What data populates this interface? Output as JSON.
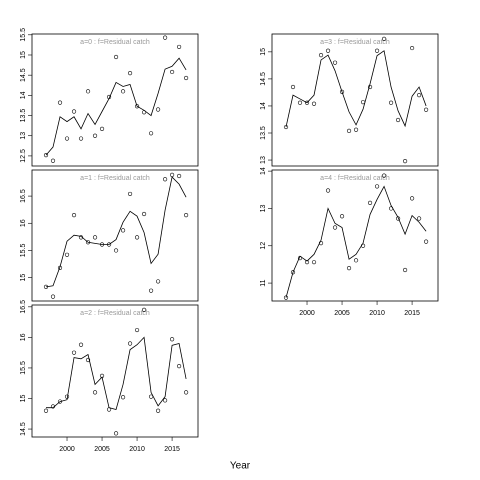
{
  "x_label": "Year",
  "chart_data": [
    {
      "type": "line",
      "title": "a=0  :  f=Residual catch",
      "x": [
        1997,
        1998,
        1999,
        2000,
        2001,
        2002,
        2003,
        2004,
        2005,
        2006,
        2007,
        2008,
        2009,
        2010,
        2011,
        2012,
        2013,
        2014,
        2015,
        2016,
        2017
      ],
      "series": [
        {
          "style": "points",
          "color": "#000000",
          "values": [
            12.52,
            12.38,
            13.82,
            12.93,
            13.6,
            12.93,
            14.1,
            13.0,
            13.17,
            13.96,
            14.95,
            14.1,
            14.55,
            13.73,
            13.58,
            13.06,
            13.65,
            15.43,
            14.58,
            15.2,
            14.43
          ]
        },
        {
          "style": "line",
          "color": "#000000",
          "values": [
            12.52,
            12.72,
            13.47,
            13.35,
            13.47,
            13.17,
            13.55,
            13.28,
            13.6,
            13.92,
            14.32,
            14.22,
            14.27,
            13.73,
            13.63,
            13.5,
            14.05,
            14.65,
            14.72,
            14.92,
            14.63
          ]
        }
      ],
      "xlim": [
        1995,
        2018.7
      ],
      "ylim": [
        12.25,
        15.52
      ],
      "yticks": [
        12.5,
        13.0,
        13.5,
        14.0,
        14.5,
        15.0,
        15.5
      ]
    },
    {
      "type": "line",
      "title": "a=1  :  f=Residual catch",
      "x": [
        1997,
        1998,
        1999,
        2000,
        2001,
        2002,
        2003,
        2004,
        2005,
        2006,
        2007,
        2008,
        2009,
        2010,
        2011,
        2012,
        2013,
        2014,
        2015,
        2016,
        2017
      ],
      "series": [
        {
          "style": "points",
          "color": "#000000",
          "values": [
            14.83,
            14.65,
            15.18,
            15.42,
            16.15,
            15.74,
            15.65,
            15.74,
            15.61,
            15.61,
            15.5,
            15.87,
            16.54,
            15.74,
            16.17,
            14.76,
            14.93,
            16.81,
            16.89,
            16.87,
            16.15
          ]
        },
        {
          "style": "line",
          "color": "#000000",
          "values": [
            14.83,
            14.85,
            15.2,
            15.67,
            15.78,
            15.76,
            15.65,
            15.63,
            15.61,
            15.61,
            15.7,
            16.02,
            16.22,
            16.13,
            15.83,
            15.26,
            15.43,
            16.24,
            16.85,
            16.72,
            16.48
          ]
        }
      ],
      "xlim": [
        1995,
        2018.7
      ],
      "ylim": [
        14.57,
        16.98
      ],
      "yticks": [
        15.0,
        15.5,
        16.0,
        16.5
      ]
    },
    {
      "type": "line",
      "title": "a=2  :  f=Residual catch",
      "x": [
        1997,
        1998,
        1999,
        2000,
        2001,
        2002,
        2003,
        2004,
        2005,
        2006,
        2007,
        2008,
        2009,
        2010,
        2011,
        2012,
        2013,
        2014,
        2015,
        2016,
        2017
      ],
      "series": [
        {
          "style": "points",
          "color": "#000000",
          "values": [
            14.8,
            14.87,
            14.95,
            15.03,
            15.75,
            15.88,
            15.63,
            15.1,
            15.37,
            14.82,
            14.43,
            15.02,
            15.9,
            16.12,
            16.45,
            15.03,
            14.8,
            14.97,
            15.97,
            15.53,
            15.1
          ]
        },
        {
          "style": "line",
          "color": "#000000",
          "values": [
            14.85,
            14.85,
            14.95,
            14.98,
            15.67,
            15.65,
            15.72,
            15.23,
            15.35,
            14.85,
            14.82,
            15.23,
            15.8,
            15.88,
            16.0,
            15.1,
            14.88,
            15.03,
            15.87,
            15.9,
            15.32
          ]
        }
      ],
      "xlim": [
        1995,
        2018.7
      ],
      "xticks": [
        2000,
        2005,
        2010,
        2015
      ],
      "ylim": [
        14.37,
        16.53
      ],
      "yticks": [
        14.5,
        15.0,
        15.5,
        16.0,
        16.5
      ]
    },
    {
      "type": "line",
      "title": "a=3  :  f=Residual catch",
      "x": [
        1997,
        1998,
        1999,
        2000,
        2001,
        2002,
        2003,
        2004,
        2005,
        2006,
        2007,
        2008,
        2009,
        2010,
        2011,
        2012,
        2013,
        2014,
        2015,
        2016,
        2017
      ],
      "series": [
        {
          "style": "points",
          "color": "#000000",
          "values": [
            13.61,
            14.35,
            14.06,
            14.06,
            14.04,
            14.94,
            15.02,
            14.8,
            14.26,
            13.54,
            13.56,
            14.07,
            14.35,
            15.02,
            15.24,
            14.06,
            13.74,
            12.98,
            15.07,
            14.2,
            13.93
          ]
        },
        {
          "style": "line",
          "color": "#000000",
          "values": [
            13.61,
            14.2,
            14.13,
            14.06,
            14.2,
            14.85,
            14.94,
            14.65,
            14.26,
            13.89,
            13.65,
            13.94,
            14.41,
            14.93,
            15.02,
            14.35,
            13.91,
            13.63,
            14.18,
            14.35,
            14.0
          ]
        }
      ],
      "xlim": [
        1995,
        2018.7
      ],
      "ylim": [
        12.89,
        15.33
      ],
      "yticks": [
        13.0,
        13.5,
        14.0,
        14.5,
        15.0
      ]
    },
    {
      "type": "line",
      "title": "a=4  :  f=Residual catch",
      "x": [
        1997,
        1998,
        1999,
        2000,
        2001,
        2002,
        2003,
        2004,
        2005,
        2006,
        2007,
        2008,
        2009,
        2010,
        2011,
        2012,
        2013,
        2014,
        2015,
        2016,
        2017
      ],
      "series": [
        {
          "style": "points",
          "color": "#000000",
          "values": [
            10.61,
            11.29,
            11.67,
            11.56,
            11.56,
            12.07,
            13.48,
            12.49,
            12.79,
            11.4,
            11.61,
            12.0,
            13.15,
            13.59,
            13.88,
            13.0,
            12.73,
            11.35,
            13.27,
            12.73,
            12.11
          ]
        },
        {
          "style": "line",
          "color": "#000000",
          "values": [
            10.61,
            11.29,
            11.72,
            11.59,
            11.77,
            12.15,
            13.0,
            12.6,
            12.49,
            11.64,
            11.77,
            12.07,
            12.84,
            13.24,
            13.59,
            13.08,
            12.76,
            12.31,
            12.81,
            12.63,
            12.39
          ]
        }
      ],
      "xlim": [
        1995,
        2018.7
      ],
      "xticks": [
        2000,
        2005,
        2010,
        2015
      ],
      "ylim": [
        10.52,
        14.03
      ],
      "yticks": [
        11.0,
        12.0,
        13.0,
        14.0
      ]
    }
  ]
}
